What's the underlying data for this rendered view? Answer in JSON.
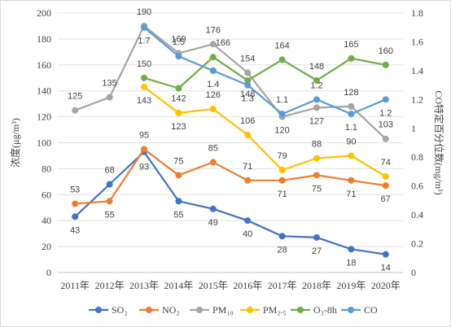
{
  "chart_data": {
    "type": "line",
    "categories": [
      "2011年",
      "2012年",
      "2013年",
      "2014年",
      "2015年",
      "2016年",
      "2017年",
      "2018年",
      "2019年",
      "2020年"
    ],
    "ylabel": "浓度(μg/m³)",
    "y2label": "CO特定百分位数(mg/m³)",
    "ylim": [
      0,
      200
    ],
    "y2lim": [
      0,
      1.8
    ],
    "yticks": [
      "0",
      "20",
      "40",
      "60",
      "80",
      "100",
      "120",
      "140",
      "160",
      "180",
      "200"
    ],
    "y2ticks": [
      "0",
      "0.2",
      "0.4",
      "0.6",
      "0.8",
      "1",
      "1.2",
      "1.4",
      "1.6",
      "1.8"
    ],
    "grid": true,
    "legend_position": "bottom",
    "series": [
      {
        "name": "SO₂",
        "axis": "left",
        "color": "#4472c4",
        "values": [
          43,
          68,
          93,
          55,
          49,
          40,
          28,
          27,
          18,
          14
        ],
        "labels": [
          "43",
          "68",
          "93",
          "55",
          "49",
          "40",
          "28",
          "27",
          "18",
          "14"
        ]
      },
      {
        "name": "NO₂",
        "axis": "left",
        "color": "#ed7d31",
        "values": [
          53,
          55,
          95,
          75,
          85,
          71,
          71,
          75,
          71,
          67
        ],
        "labels": [
          "53",
          "55",
          "95",
          "75",
          "85",
          "71",
          "71",
          "75",
          "71",
          "67"
        ]
      },
      {
        "name": "PM₁₀",
        "axis": "left",
        "color": "#a5a5a5",
        "values": [
          125,
          135,
          190,
          169,
          176,
          154,
          120,
          127,
          128,
          103
        ],
        "labels": [
          "125",
          "135",
          "190",
          "169",
          "176",
          "154",
          "120",
          "127",
          "128",
          "103"
        ]
      },
      {
        "name": "PM₂.₅",
        "axis": "left",
        "color": "#ffc000",
        "values": [
          null,
          null,
          143,
          123,
          126,
          106,
          79,
          88,
          90,
          74
        ],
        "labels": [
          "",
          "",
          "143",
          "123",
          "126",
          "106",
          "79",
          "88",
          "90",
          "74"
        ]
      },
      {
        "name": "O₃-8h",
        "axis": "left",
        "color": "#70ad47",
        "values": [
          null,
          null,
          150,
          142,
          166,
          148,
          164,
          148,
          165,
          160
        ],
        "labels": [
          "",
          "",
          "150",
          "142",
          "166",
          "148",
          "164",
          "148",
          "165",
          "160"
        ]
      },
      {
        "name": "CO",
        "axis": "right",
        "color": "#5b9bd5",
        "values": [
          null,
          null,
          1.7,
          1.5,
          1.4,
          1.3,
          1.1,
          1.2,
          1.1,
          1.2
        ],
        "labels": [
          "",
          "",
          "1.7",
          "1.5",
          "1.4",
          "1.3",
          "1.1",
          "1.2",
          "1.1",
          "1.2"
        ]
      }
    ]
  }
}
